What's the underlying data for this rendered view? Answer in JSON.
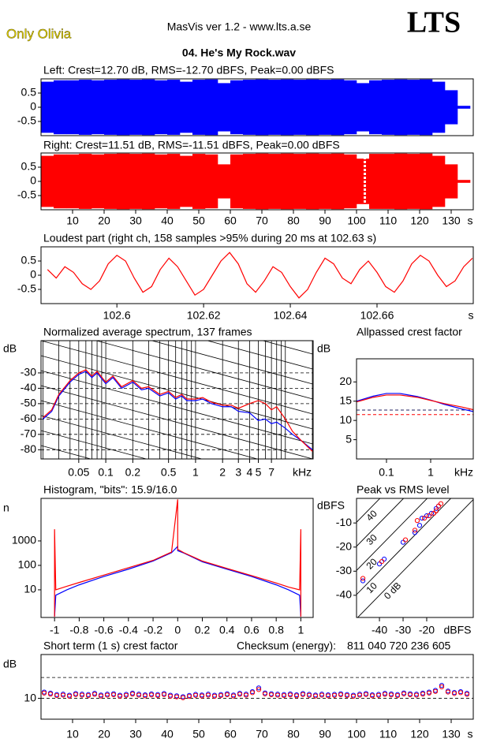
{
  "header": {
    "artist": "Only Olivia",
    "app": "MasVis ver 1.2 - www.lts.a.se",
    "logo": "LTS",
    "file": "04. He's My Rock.wav"
  },
  "chart_data": [
    {
      "type": "area",
      "title": "Left: Crest=12.70 dB, RMS=-12.70 dBFS, Peak=0.00 dBFS",
      "xlim": [
        0,
        137
      ],
      "ylim": [
        -1,
        1
      ],
      "yticks": [
        0.5,
        0,
        -0.5
      ],
      "x": [
        2,
        6,
        10,
        14,
        18,
        22,
        26,
        30,
        34,
        38,
        42,
        46,
        50,
        54,
        58,
        62,
        66,
        70,
        74,
        78,
        82,
        86,
        90,
        94,
        98,
        102,
        106,
        110,
        114,
        118,
        122,
        126,
        130,
        134
      ],
      "series": [
        {
          "color": "#0000ff",
          "values": [
            0.9,
            0.95,
            0.95,
            0.97,
            0.95,
            0.97,
            0.98,
            0.97,
            0.98,
            0.95,
            0.97,
            0.9,
            0.97,
            0.98,
            0.85,
            0.95,
            0.97,
            0.98,
            0.97,
            0.98,
            0.97,
            0.98,
            0.97,
            0.98,
            0.95,
            0.85,
            0.95,
            0.97,
            0.98,
            0.97,
            0.98,
            0.9,
            0.6,
            0.05
          ]
        }
      ]
    },
    {
      "type": "area",
      "title": "Right: Crest=11.51 dB, RMS=-11.51 dBFS, Peak=0.00 dBFS",
      "xlim": [
        0,
        137
      ],
      "ylim": [
        -1,
        1
      ],
      "yticks": [
        0.5,
        0,
        -0.5
      ],
      "xticks": [
        10,
        20,
        30,
        40,
        50,
        60,
        70,
        80,
        90,
        100,
        110,
        120,
        130
      ],
      "xunit": "s",
      "marker_x": 102.63,
      "x": [
        2,
        6,
        10,
        14,
        18,
        22,
        26,
        30,
        34,
        38,
        42,
        46,
        50,
        54,
        58,
        62,
        66,
        70,
        74,
        78,
        82,
        86,
        90,
        94,
        98,
        102,
        106,
        110,
        114,
        118,
        122,
        126,
        130,
        134
      ],
      "series": [
        {
          "color": "#ff0000",
          "values": [
            0.9,
            0.95,
            0.95,
            0.97,
            0.95,
            0.97,
            0.98,
            0.97,
            0.98,
            0.95,
            0.97,
            0.9,
            0.97,
            0.95,
            0.6,
            0.95,
            0.97,
            0.98,
            0.97,
            0.98,
            0.97,
            0.98,
            0.97,
            0.98,
            0.95,
            0.8,
            0.97,
            0.97,
            0.98,
            0.97,
            0.98,
            0.9,
            0.6,
            0.05
          ]
        }
      ]
    },
    {
      "type": "line",
      "title": "Loudest part (right ch, 158 samples >95% during 20 ms at 102.63 s)",
      "xlim": [
        102.5825,
        102.6822
      ],
      "ylim": [
        -1,
        1
      ],
      "yticks": [
        0.5,
        0,
        -0.5
      ],
      "xticks": [
        102.6,
        102.62,
        102.64,
        102.66
      ],
      "xunit": "s",
      "x": [
        102.584,
        102.586,
        102.588,
        102.59,
        102.592,
        102.594,
        102.596,
        102.598,
        102.6,
        102.602,
        102.604,
        102.606,
        102.608,
        102.61,
        102.612,
        102.614,
        102.616,
        102.618,
        102.62,
        102.622,
        102.624,
        102.626,
        102.628,
        102.63,
        102.632,
        102.634,
        102.636,
        102.638,
        102.64,
        102.642,
        102.644,
        102.646,
        102.648,
        102.65,
        102.652,
        102.654,
        102.656,
        102.658,
        102.66,
        102.662,
        102.664,
        102.666,
        102.668,
        102.67,
        102.672,
        102.674,
        102.676,
        102.678,
        102.68,
        102.682
      ],
      "series": [
        {
          "color": "#ff0000",
          "values": [
            0.2,
            -0.1,
            0.3,
            0.1,
            -0.3,
            -0.5,
            -0.2,
            0.4,
            0.7,
            0.5,
            -0.1,
            -0.6,
            -0.4,
            0.2,
            0.6,
            0.3,
            -0.2,
            -0.7,
            -0.5,
            0.0,
            0.5,
            0.8,
            0.4,
            -0.3,
            -0.6,
            -0.2,
            0.3,
            0.1,
            -0.4,
            -0.8,
            -0.5,
            0.1,
            0.6,
            0.4,
            -0.1,
            -0.3,
            0.2,
            0.5,
            0.1,
            -0.4,
            -0.6,
            -0.2,
            0.4,
            0.7,
            0.5,
            0.0,
            -0.4,
            -0.2,
            0.3,
            0.6
          ]
        }
      ]
    },
    {
      "type": "line",
      "title": "Normalized average spectrum, 137 frames",
      "yunit": "dB",
      "xunit": "kHz",
      "xscale": "log",
      "xlim": [
        0.019,
        20.4
      ],
      "ylim": [
        -86,
        -9
      ],
      "grid": true,
      "yticks": [
        -30,
        -40,
        -50,
        -60,
        -70,
        -80
      ],
      "xticks": [
        0.05,
        0.1,
        0.2,
        0.5,
        1,
        2,
        3,
        4,
        5,
        7
      ],
      "xgrid": [
        0.02,
        0.03,
        0.04,
        0.05,
        0.06,
        0.07,
        0.08,
        0.09,
        0.1,
        0.2,
        0.3,
        0.4,
        0.5,
        0.6,
        0.7,
        0.8,
        0.9,
        1,
        2,
        3,
        4,
        5,
        6,
        7,
        8,
        9,
        10,
        20
      ],
      "x": [
        0.02,
        0.025,
        0.03,
        0.04,
        0.05,
        0.06,
        0.07,
        0.08,
        0.1,
        0.12,
        0.15,
        0.2,
        0.25,
        0.3,
        0.4,
        0.5,
        0.6,
        0.7,
        0.8,
        1,
        1.2,
        1.5,
        2,
        2.5,
        3,
        4,
        5,
        6,
        7,
        8,
        10,
        12,
        15,
        20
      ],
      "series": [
        {
          "color": "#0000ff",
          "values": [
            -60,
            -55,
            -45,
            -36,
            -31,
            -29,
            -33,
            -30,
            -37,
            -33,
            -40,
            -36,
            -41,
            -40,
            -45,
            -43,
            -47,
            -45,
            -48,
            -48,
            -47,
            -50,
            -52,
            -52,
            -55,
            -56,
            -61,
            -60,
            -63,
            -62,
            -66,
            -70,
            -74,
            -80
          ]
        },
        {
          "color": "#ff0000",
          "values": [
            -59,
            -54,
            -44,
            -35,
            -30,
            -28,
            -32,
            -29,
            -36,
            -32,
            -39,
            -35,
            -40,
            -39,
            -44,
            -42,
            -46,
            -44,
            -47,
            -47,
            -46,
            -49,
            -51,
            -51,
            -53,
            -50,
            -48,
            -50,
            -54,
            -52,
            -60,
            -68,
            -74,
            -81
          ]
        }
      ]
    },
    {
      "type": "line",
      "title": "Allpassed crest factor",
      "yunit": "dB",
      "xunit": "kHz",
      "xscale": "log",
      "xlim": [
        0.021,
        9.2
      ],
      "ylim": [
        0,
        26
      ],
      "yticks": [
        20,
        15,
        10,
        5
      ],
      "xticks": [
        0.1,
        1
      ],
      "reference_lines": [
        {
          "value": 12.7,
          "color": "#202060"
        },
        {
          "value": 11.51,
          "color": "#ff0000"
        }
      ],
      "x": [
        0.021,
        0.05,
        0.1,
        0.2,
        0.5,
        1,
        2,
        5,
        9.2
      ],
      "series": [
        {
          "color": "#0000ff",
          "values": [
            15,
            16.3,
            17,
            17,
            16.2,
            15.3,
            14.2,
            13,
            12.3
          ]
        },
        {
          "color": "#ff0000",
          "values": [
            14.8,
            16,
            16.6,
            16.6,
            16,
            15.2,
            14.4,
            13.5,
            12.8
          ]
        }
      ]
    },
    {
      "type": "line",
      "title": "Histogram, \"bits\": 15.9/16.0",
      "yunit": "n",
      "yscale": "log",
      "xlim": [
        -1.11,
        1.1
      ],
      "ylim": [
        0.74,
        55000
      ],
      "yticks": [
        1000,
        100,
        10
      ],
      "xticks": [
        -1,
        -0.8,
        -0.6,
        -0.4,
        -0.2,
        0,
        0.2,
        0.4,
        0.6,
        0.8,
        1
      ],
      "x": [
        -1,
        -1,
        -0.99,
        -0.9,
        -0.8,
        -0.6,
        -0.4,
        -0.2,
        -0.05,
        0,
        0,
        0.05,
        0.2,
        0.4,
        0.6,
        0.8,
        0.9,
        0.99,
        1,
        1
      ],
      "series": [
        {
          "color": "#0000ff",
          "values": [
            0.8,
            0.8,
            6,
            10,
            16,
            35,
            70,
            150,
            330,
            600,
            400,
            320,
            140,
            70,
            35,
            16,
            10,
            6,
            0.8,
            0.8
          ]
        },
        {
          "color": "#ff0000",
          "values": [
            0.8,
            3000,
            10,
            14,
            20,
            40,
            80,
            160,
            350,
            50000,
            450,
            330,
            150,
            75,
            38,
            19,
            13,
            10,
            3000,
            0.8
          ]
        }
      ]
    },
    {
      "type": "scatter",
      "title": "Peak vs RMS level",
      "yunit": "dBFS",
      "xunit": "dBFS",
      "xlim": [
        -49.7,
        -0.3
      ],
      "ylim": [
        -49.2,
        0.2
      ],
      "yticks": [
        -10,
        -20,
        -30,
        -40
      ],
      "xticks": [
        -40,
        -30,
        -20
      ],
      "crest_lines": [
        {
          "value": 40,
          "label": "40"
        },
        {
          "value": 30,
          "label": "30"
        },
        {
          "value": 20,
          "label": "20"
        },
        {
          "value": 10,
          "label": "10"
        },
        {
          "value": 0,
          "label": "0 dB"
        }
      ],
      "series": [
        {
          "color": "#0000ff",
          "x": [
            -47,
            -40,
            -38,
            -30,
            -25,
            -23,
            -22,
            -20,
            -18,
            -16,
            -15
          ],
          "values": [
            -34,
            -27,
            -25,
            -18,
            -14,
            -11,
            -8,
            -7,
            -6,
            -4,
            -3
          ]
        },
        {
          "color": "#ff0000",
          "x": [
            -47,
            -39,
            -29,
            -25,
            -24,
            -21,
            -19,
            -17,
            -16,
            -15,
            -14
          ],
          "values": [
            -33,
            -26,
            -17,
            -13,
            -9,
            -8,
            -7,
            -6,
            -5,
            -3,
            -2
          ]
        }
      ]
    },
    {
      "type": "scatter",
      "title": "Short term (1 s) crest factor",
      "yunit": "dB",
      "xunit": "s",
      "checksum_label": "Checksum (energy):",
      "checksum": "811 040 720 236 605",
      "xlim": [
        0,
        137
      ],
      "ylim": [
        0,
        31
      ],
      "yticks": [
        10
      ],
      "ygrid": [
        0,
        10,
        20
      ],
      "xticks": [
        10,
        20,
        30,
        40,
        50,
        60,
        70,
        80,
        90,
        100,
        110,
        120,
        130
      ],
      "x": [
        1,
        3,
        5,
        7,
        9,
        11,
        13,
        15,
        17,
        19,
        21,
        23,
        25,
        27,
        29,
        31,
        33,
        35,
        37,
        39,
        41,
        43,
        45,
        47,
        49,
        51,
        53,
        55,
        57,
        59,
        61,
        63,
        65,
        67,
        69,
        71,
        73,
        75,
        77,
        79,
        81,
        83,
        85,
        87,
        89,
        91,
        93,
        95,
        97,
        99,
        101,
        103,
        105,
        107,
        109,
        111,
        113,
        115,
        117,
        119,
        121,
        123,
        125,
        127,
        129,
        131,
        133,
        135
      ],
      "series": [
        {
          "color": "#0000ff",
          "values": [
            13,
            12.5,
            11.8,
            12,
            11.5,
            12.3,
            12,
            11.8,
            12.4,
            11.6,
            12,
            12.2,
            11.5,
            11.9,
            12.5,
            12,
            11.7,
            12.1,
            11.8,
            12.3,
            11.5,
            11.2,
            10.8,
            11.4,
            11.9,
            11.6,
            12,
            11.5,
            11.8,
            12.2,
            11.6,
            12.4,
            12,
            13.2,
            15,
            12.6,
            12.2,
            12,
            11.8,
            12.1,
            11.7,
            12.3,
            11.9,
            11.6,
            12,
            11.7,
            11.9,
            12.2,
            11.8,
            11.5,
            12,
            12.3,
            11.7,
            11.9,
            12.4,
            12.1,
            11.8,
            12.6,
            12.2,
            12,
            12.5,
            13,
            13.8,
            16.2,
            13.5,
            12.8,
            13.2,
            12.4
          ]
        },
        {
          "color": "#ff0000",
          "values": [
            12.5,
            12,
            11.3,
            11.5,
            11,
            11.8,
            11.5,
            11.3,
            11.9,
            11.1,
            11.5,
            11.7,
            11,
            11.4,
            12,
            11.5,
            11.2,
            11.6,
            11.3,
            11.8,
            11,
            10.7,
            10.3,
            10.9,
            11.4,
            11.1,
            11.5,
            11,
            11.3,
            11.7,
            11.1,
            11.9,
            11.5,
            12.7,
            14.2,
            12.1,
            11.7,
            11.5,
            11.3,
            11.6,
            11.2,
            11.8,
            11.4,
            11.1,
            11.5,
            11.2,
            11.4,
            11.7,
            11.3,
            11,
            11.5,
            11.8,
            11.2,
            11.4,
            11.9,
            11.6,
            11.3,
            12.1,
            11.7,
            11.5,
            12,
            12.5,
            13.3,
            15.5,
            13,
            12.3,
            12.7,
            11.9
          ]
        }
      ]
    }
  ]
}
